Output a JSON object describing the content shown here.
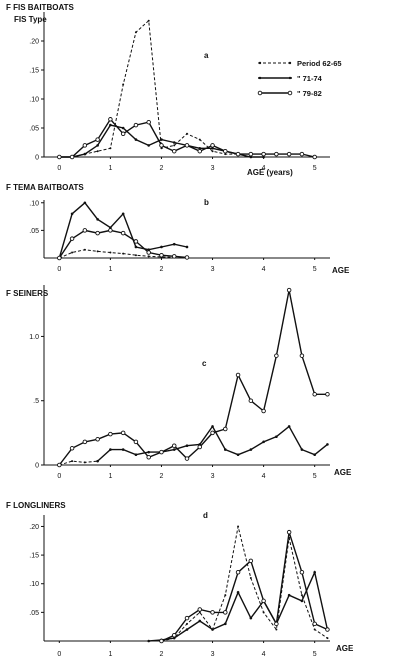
{
  "chart_data": [
    {
      "type": "line",
      "title": "F  FIS BAITBOATS",
      "subtitle": "FIS Type",
      "panel_letter": "a",
      "xlabel": "AGE  (years)",
      "ylabel": "F",
      "xlim": [
        -0.3,
        5.3
      ],
      "ylim": [
        0,
        0.25
      ],
      "x_ticks": [
        "0",
        "1",
        "2",
        "3",
        "4",
        "5"
      ],
      "y_ticks": [
        ".20",
        ".15",
        ".10",
        ".05",
        "0"
      ],
      "y_tick_values": [
        0.2,
        0.15,
        0.1,
        0.05,
        0
      ],
      "legend_position": "top-right",
      "series": [
        {
          "name": "Period  62-65",
          "style": "dashed",
          "x": [
            0,
            0.25,
            0.5,
            0.75,
            1.0,
            1.25,
            1.5,
            1.75,
            2.0,
            2.25,
            2.5,
            2.75,
            3.0,
            3.25,
            3.5,
            3.75,
            4.0
          ],
          "y": [
            0,
            0,
            0.005,
            0.01,
            0.015,
            0.125,
            0.215,
            0.235,
            0.015,
            0.02,
            0.04,
            0.03,
            0.01,
            0.005,
            0.005,
            0,
            0
          ]
        },
        {
          "name": "\"    71-74",
          "style": "solid-dot",
          "x": [
            0,
            0.25,
            0.5,
            0.75,
            1.0,
            1.25,
            1.5,
            1.75,
            2.0,
            2.25,
            2.5,
            2.75,
            3.0,
            3.25,
            3.5,
            3.75,
            4.0
          ],
          "y": [
            0,
            0,
            0.005,
            0.02,
            0.055,
            0.05,
            0.03,
            0.02,
            0.03,
            0.025,
            0.02,
            0.015,
            0.015,
            0.01,
            0.005,
            0,
            0
          ]
        },
        {
          "name": "\"    79-82",
          "style": "solid-circle",
          "x": [
            0,
            0.25,
            0.5,
            0.75,
            1.0,
            1.25,
            1.5,
            1.75,
            2.0,
            2.25,
            2.5,
            2.75,
            3.0,
            3.25,
            3.5,
            3.75,
            4.0,
            4.25,
            4.5,
            4.75,
            5.0
          ],
          "y": [
            0,
            0,
            0.02,
            0.03,
            0.065,
            0.04,
            0.055,
            0.06,
            0.02,
            0.01,
            0.02,
            0.01,
            0.02,
            0.01,
            0.005,
            0.005,
            0.005,
            0.005,
            0.005,
            0.005,
            0
          ]
        }
      ]
    },
    {
      "type": "line",
      "title": "F  TEMA BAITBOATS",
      "panel_letter": "b",
      "xlabel": "AGE",
      "ylabel": "F",
      "xlim": [
        -0.3,
        5.3
      ],
      "ylim": [
        0,
        0.105
      ],
      "x_ticks": [
        "0",
        "1",
        "2",
        "3",
        "4",
        "5"
      ],
      "y_ticks": [
        ".10",
        ".05"
      ],
      "y_tick_values": [
        0.1,
        0.05
      ],
      "series": [
        {
          "style": "dashed",
          "x": [
            0,
            0.25,
            0.5,
            0.75,
            1.0,
            1.25,
            1.5,
            1.75,
            2.0,
            2.25
          ],
          "y": [
            0,
            0.01,
            0.015,
            0.012,
            0.01,
            0.008,
            0.005,
            0.003,
            0.002,
            0.001
          ]
        },
        {
          "style": "solid-dot",
          "x": [
            0,
            0.25,
            0.5,
            0.75,
            1.0,
            1.25,
            1.5,
            1.75,
            2.0,
            2.25,
            2.5
          ],
          "y": [
            0,
            0.08,
            0.1,
            0.07,
            0.055,
            0.08,
            0.02,
            0.015,
            0.02,
            0.025,
            0.02
          ]
        },
        {
          "style": "solid-circle",
          "x": [
            0,
            0.25,
            0.5,
            0.75,
            1.0,
            1.25,
            1.5,
            1.75,
            2.0,
            2.25,
            2.5
          ],
          "y": [
            0,
            0.035,
            0.05,
            0.045,
            0.05,
            0.045,
            0.03,
            0.01,
            0.005,
            0.003,
            0.001
          ]
        }
      ]
    },
    {
      "type": "line",
      "title": "F  SEINERS",
      "panel_letter": "c",
      "xlabel": "AGE",
      "ylabel": "F",
      "xlim": [
        -0.3,
        5.3
      ],
      "ylim": [
        0,
        1.4
      ],
      "x_ticks": [
        "0",
        "1",
        "2",
        "3",
        "4",
        "5"
      ],
      "y_ticks": [
        "1.0",
        ".5",
        "0"
      ],
      "y_tick_values": [
        1.0,
        0.5,
        0
      ],
      "series": [
        {
          "style": "dashed",
          "x": [
            0,
            0.25,
            0.5,
            0.75
          ],
          "y": [
            0,
            0.03,
            0.02,
            0.03
          ]
        },
        {
          "style": "solid-dot",
          "x": [
            0.75,
            1.0,
            1.25,
            1.5,
            1.75,
            2.0,
            2.25,
            2.5,
            2.75,
            3.0,
            3.25,
            3.5,
            3.75,
            4.0,
            4.25,
            4.5,
            4.75,
            5.0,
            5.25
          ],
          "y": [
            0.03,
            0.12,
            0.12,
            0.08,
            0.1,
            0.1,
            0.12,
            0.15,
            0.16,
            0.3,
            0.12,
            0.08,
            0.12,
            0.18,
            0.22,
            0.3,
            0.12,
            0.08,
            0.16
          ]
        },
        {
          "style": "solid-circle",
          "x": [
            0,
            0.25,
            0.5,
            0.75,
            1.0,
            1.25,
            1.5,
            1.75,
            2.0,
            2.25,
            2.5,
            2.75,
            3.0,
            3.25,
            3.5,
            3.75,
            4.0,
            4.25,
            4.5,
            4.75,
            5.0,
            5.25
          ],
          "y": [
            0,
            0.13,
            0.18,
            0.2,
            0.24,
            0.25,
            0.18,
            0.06,
            0.1,
            0.15,
            0.05,
            0.14,
            0.25,
            0.28,
            0.7,
            0.5,
            0.42,
            0.85,
            1.36,
            0.85,
            0.55,
            0.55
          ]
        }
      ]
    },
    {
      "type": "line",
      "title": "F  LONGLINERS",
      "panel_letter": "d",
      "xlabel": "AGE",
      "ylabel": "F",
      "xlim": [
        -0.3,
        5.3
      ],
      "ylim": [
        0,
        0.22
      ],
      "x_ticks": [
        "0",
        "1",
        "2",
        "3",
        "4",
        "5"
      ],
      "y_ticks": [
        ".20",
        ".15",
        ".10",
        ".05"
      ],
      "y_tick_values": [
        0.2,
        0.15,
        0.1,
        0.05
      ],
      "series": [
        {
          "style": "dashed",
          "x": [
            2.0,
            2.25,
            2.5,
            2.75,
            3.0,
            3.25,
            3.5,
            3.75,
            4.0,
            4.25,
            4.5,
            4.75,
            5.0,
            5.25
          ],
          "y": [
            0,
            0.005,
            0.03,
            0.05,
            0.02,
            0.08,
            0.2,
            0.11,
            0.05,
            0.02,
            0.18,
            0.08,
            0.02,
            0.005
          ]
        },
        {
          "style": "solid-dot",
          "x": [
            1.75,
            2.0,
            2.25,
            2.5,
            2.75,
            3.0,
            3.25,
            3.5,
            3.75,
            4.0,
            4.25,
            4.5,
            4.75,
            5.0,
            5.25
          ],
          "y": [
            0,
            0.002,
            0.005,
            0.02,
            0.035,
            0.02,
            0.03,
            0.085,
            0.04,
            0.07,
            0.03,
            0.08,
            0.07,
            0.12,
            0.02
          ]
        },
        {
          "style": "solid-circle",
          "x": [
            2.0,
            2.25,
            2.5,
            2.75,
            3.0,
            3.25,
            3.5,
            3.75,
            4.0,
            4.25,
            4.5,
            4.75,
            5.0,
            5.25
          ],
          "y": [
            0,
            0.01,
            0.04,
            0.055,
            0.05,
            0.05,
            0.12,
            0.14,
            0.07,
            0.03,
            0.19,
            0.12,
            0.03,
            0.02
          ]
        }
      ]
    }
  ]
}
